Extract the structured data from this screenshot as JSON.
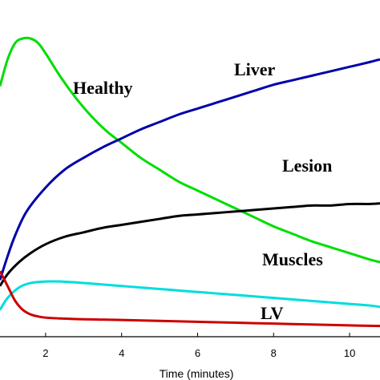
{
  "chart_data": {
    "type": "line",
    "xlabel": "Time (minutes)",
    "xlim": [
      0.8,
      10.8
    ],
    "ylim": [
      0,
      1
    ],
    "xticks": [
      2,
      4,
      6,
      8,
      10
    ],
    "grid": false,
    "legend": "inline labels",
    "series": [
      {
        "name": "Healthy",
        "color": "#00dd00",
        "x": [
          0.8,
          1.0,
          1.2,
          1.4,
          1.6,
          1.8,
          2.0,
          2.4,
          2.8,
          3.2,
          3.6,
          4.0,
          4.5,
          5.0,
          5.5,
          6.0,
          6.5,
          7.0,
          7.5,
          8.0,
          8.5,
          9.0,
          9.5,
          10.0,
          10.5,
          10.8
        ],
        "y": [
          0.84,
          0.93,
          0.985,
          1.0,
          1.0,
          0.985,
          0.95,
          0.87,
          0.8,
          0.74,
          0.69,
          0.65,
          0.6,
          0.56,
          0.52,
          0.49,
          0.46,
          0.43,
          0.4,
          0.37,
          0.345,
          0.32,
          0.3,
          0.28,
          0.26,
          0.25
        ]
      },
      {
        "name": "Liver",
        "color": "#0000aa",
        "x": [
          0.8,
          1.0,
          1.2,
          1.5,
          2.0,
          2.5,
          3.0,
          3.5,
          4.0,
          4.5,
          5.0,
          5.5,
          6.0,
          6.5,
          7.0,
          7.5,
          8.0,
          8.5,
          9.0,
          9.5,
          10.0,
          10.5,
          10.8
        ],
        "y": [
          0.19,
          0.27,
          0.34,
          0.42,
          0.5,
          0.56,
          0.6,
          0.635,
          0.665,
          0.695,
          0.72,
          0.745,
          0.765,
          0.785,
          0.805,
          0.825,
          0.845,
          0.86,
          0.875,
          0.89,
          0.905,
          0.92,
          0.93
        ]
      },
      {
        "name": "Lesion",
        "color": "#000000",
        "x": [
          0.8,
          1.0,
          1.3,
          1.6,
          2.0,
          2.5,
          3.0,
          3.5,
          4.0,
          4.5,
          5.0,
          5.5,
          6.0,
          6.5,
          7.0,
          7.5,
          8.0,
          8.5,
          9.0,
          9.5,
          10.0,
          10.5,
          10.8
        ],
        "y": [
          0.17,
          0.21,
          0.25,
          0.28,
          0.31,
          0.335,
          0.35,
          0.365,
          0.375,
          0.385,
          0.395,
          0.405,
          0.41,
          0.415,
          0.42,
          0.425,
          0.43,
          0.435,
          0.44,
          0.44,
          0.445,
          0.445,
          0.447
        ]
      },
      {
        "name": "Muscles",
        "color": "#00dddd",
        "x": [
          0.8,
          1.0,
          1.3,
          1.6,
          2.0,
          2.4,
          3.0,
          3.5,
          4.0,
          4.5,
          5.0,
          5.5,
          6.0,
          6.5,
          7.0,
          7.5,
          8.0,
          8.5,
          9.0,
          9.5,
          10.0,
          10.5,
          10.8
        ],
        "y": [
          0.09,
          0.13,
          0.165,
          0.18,
          0.185,
          0.185,
          0.18,
          0.175,
          0.17,
          0.165,
          0.16,
          0.155,
          0.15,
          0.145,
          0.14,
          0.135,
          0.13,
          0.125,
          0.12,
          0.115,
          0.11,
          0.105,
          0.1
        ]
      },
      {
        "name": "LV",
        "color": "#cc0000",
        "x": [
          0.8,
          1.0,
          1.2,
          1.4,
          1.6,
          1.8,
          2.0,
          2.4,
          2.8,
          3.2,
          4.0,
          5.0,
          6.0,
          7.0,
          8.0,
          9.0,
          10.0,
          10.8
        ],
        "y": [
          0.22,
          0.17,
          0.12,
          0.09,
          0.075,
          0.068,
          0.064,
          0.061,
          0.059,
          0.058,
          0.056,
          0.053,
          0.05,
          0.047,
          0.044,
          0.041,
          0.038,
          0.036
        ]
      }
    ]
  }
}
